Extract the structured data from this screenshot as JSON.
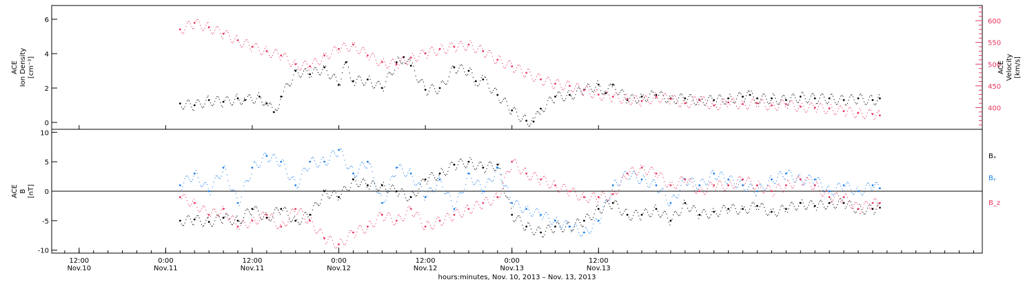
{
  "chart_data": [
    {
      "type": "scatter",
      "panel": "top",
      "ylabel_lines": [
        "ACE",
        "Ion Density",
        "[cm⁻³]"
      ],
      "y2label_lines": [
        "ACE",
        "Velocity",
        "[km/s]"
      ],
      "ylim": [
        -0.4,
        6.8
      ],
      "yticks": [
        0,
        2,
        4,
        6
      ],
      "y2lim": [
        350,
        635
      ],
      "y2ticks": [
        400,
        450,
        500,
        550,
        600
      ],
      "colors": {
        "density": "#000000",
        "velocity": "#e8335d"
      },
      "series": [
        {
          "name": "",
          "axis": "left",
          "color": "#000000",
          "x_hours": [
            14,
            16,
            18,
            20,
            22,
            23,
            25,
            26,
            27,
            28,
            30,
            32,
            34,
            36,
            37,
            38,
            40,
            42,
            44,
            45,
            46,
            48,
            50,
            52,
            54,
            55,
            56,
            58,
            60,
            62,
            63,
            64,
            66,
            68,
            70,
            72,
            73,
            74,
            76,
            78,
            80,
            82,
            84,
            86,
            88,
            90,
            92,
            93,
            94,
            96,
            98,
            100,
            102,
            104,
            106,
            108,
            110,
            111
          ],
          "y": [
            1.1,
            1.0,
            1.3,
            1.2,
            1.4,
            1.3,
            1.5,
            1.1,
            0.6,
            1.5,
            3.0,
            2.8,
            3.2,
            2.2,
            3.5,
            2.4,
            2.5,
            2.0,
            3.5,
            3.8,
            3.3,
            1.9,
            2.0,
            3.2,
            3.0,
            2.4,
            2.5,
            1.6,
            0.7,
            0.1,
            0.05,
            0.8,
            1.5,
            1.6,
            1.9,
            2.2,
            1.7,
            2.2,
            1.3,
            1.5,
            1.6,
            1.4,
            1.4,
            1.3,
            1.3,
            1.4,
            1.5,
            1.6,
            1.4,
            1.4,
            1.3,
            1.5,
            1.4,
            1.4,
            1.3,
            1.4,
            1.3,
            1.4
          ]
        },
        {
          "name": "",
          "axis": "right",
          "color": "#e8335d",
          "x_hours": [
            14,
            16,
            18,
            20,
            22,
            24,
            26,
            28,
            30,
            32,
            34,
            36,
            38,
            40,
            42,
            44,
            46,
            48,
            50,
            52,
            54,
            56,
            58,
            60,
            62,
            64,
            66,
            68,
            70,
            72,
            74,
            76,
            78,
            80,
            82,
            84,
            86,
            88,
            90,
            92,
            94,
            96,
            98,
            100,
            102,
            104,
            106,
            108,
            110,
            111
          ],
          "y": [
            580,
            595,
            585,
            570,
            555,
            540,
            530,
            520,
            500,
            495,
            520,
            535,
            545,
            520,
            505,
            500,
            515,
            525,
            535,
            540,
            545,
            530,
            510,
            495,
            480,
            465,
            455,
            450,
            440,
            430,
            425,
            420,
            415,
            425,
            420,
            410,
            418,
            405,
            412,
            408,
            410,
            405,
            408,
            402,
            400,
            398,
            392,
            388,
            385,
            382
          ]
        }
      ]
    },
    {
      "type": "scatter",
      "panel": "bottom",
      "ylabel_lines": [
        "ACE",
        "B",
        "[nT]"
      ],
      "ylim": [
        -10.5,
        10.5
      ],
      "yticks": [
        -10,
        -5,
        0,
        5,
        10
      ],
      "legend": [
        {
          "label": "Bₓ",
          "color": "#000000"
        },
        {
          "label": "Bᵧ",
          "color": "#1a7ee8"
        },
        {
          "label": "B_z",
          "color": "#e8335d"
        }
      ],
      "legend_placement": "right",
      "zero_line": true,
      "series": [
        {
          "name": "Bₓ",
          "color": "#000000",
          "x_hours": [
            14,
            16,
            18,
            20,
            22,
            24,
            26,
            28,
            30,
            32,
            34,
            36,
            38,
            40,
            42,
            44,
            46,
            48,
            50,
            52,
            54,
            56,
            58,
            60,
            62,
            64,
            66,
            68,
            70,
            72,
            74,
            76,
            78,
            80,
            82,
            84,
            86,
            88,
            90,
            92,
            94,
            96,
            98,
            100,
            102,
            104,
            106,
            108,
            110,
            111
          ],
          "y": [
            -5,
            -4.8,
            -5.2,
            -4.5,
            -5,
            -3,
            -4.5,
            -3,
            -5,
            -4,
            0,
            -1,
            2,
            1,
            1,
            0,
            -1,
            2,
            3,
            4.5,
            5,
            4,
            4.5,
            -4,
            -6,
            -7,
            -6,
            -6,
            -5,
            -3,
            -2,
            -4,
            -4,
            -3,
            -5,
            -2,
            -4,
            -3.5,
            -3,
            -3,
            -2.5,
            -3.5,
            -3,
            -2,
            -2.5,
            -2,
            -2,
            -3,
            -3,
            -2.8
          ]
        },
        {
          "name": "Bᵧ",
          "color": "#1a7ee8",
          "x_hours": [
            14,
            16,
            18,
            20,
            22,
            24,
            26,
            28,
            30,
            32,
            34,
            36,
            38,
            40,
            42,
            44,
            46,
            48,
            50,
            52,
            54,
            56,
            58,
            60,
            62,
            64,
            66,
            68,
            70,
            72,
            74,
            76,
            78,
            80,
            82,
            84,
            86,
            88,
            90,
            92,
            94,
            96,
            98,
            100,
            102,
            104,
            106,
            108,
            110,
            111
          ],
          "y": [
            1,
            3,
            0,
            4,
            -2,
            4,
            6,
            5,
            1,
            5,
            5,
            7,
            3,
            5,
            -2,
            4,
            3,
            -1,
            2,
            -3,
            3,
            0,
            4,
            -2,
            -3,
            -4,
            -5,
            -6,
            -7,
            -5,
            1,
            3,
            2,
            1,
            -2,
            2,
            1,
            3,
            2,
            1,
            0,
            2,
            3,
            2,
            2,
            0,
            1,
            0,
            1,
            0.5
          ]
        },
        {
          "name": "B_z",
          "color": "#e8335d",
          "x_hours": [
            14,
            16,
            18,
            20,
            22,
            24,
            26,
            28,
            30,
            32,
            34,
            36,
            38,
            40,
            42,
            44,
            46,
            48,
            50,
            52,
            54,
            56,
            58,
            60,
            62,
            64,
            66,
            68,
            70,
            72,
            74,
            76,
            78,
            80,
            82,
            84,
            86,
            88,
            90,
            92,
            94,
            96,
            98,
            100,
            102,
            104,
            106,
            108,
            110,
            111
          ],
          "y": [
            -1,
            -2,
            -4,
            -3,
            -6,
            -5,
            -4,
            -6,
            -3,
            -5,
            -8,
            -9,
            -7,
            -6,
            -4,
            -5,
            -3,
            -6,
            -5,
            -4,
            -3,
            -2,
            -1,
            5,
            3,
            2,
            1,
            0,
            -1,
            -1,
            -0.5,
            3,
            4,
            3,
            1,
            2,
            0,
            1,
            1,
            2,
            1,
            0,
            1,
            2,
            1,
            -1,
            -1,
            -3,
            -2,
            -2
          ]
        }
      ]
    }
  ],
  "xaxis": {
    "xlim_hours": [
      -3.8,
      125.2
    ],
    "ticks": [
      {
        "h": 0,
        "time": "12:00",
        "date": "Nov.10"
      },
      {
        "h": 12,
        "time": "0:00",
        "date": "Nov.11"
      },
      {
        "h": 24,
        "time": "12:00",
        "date": "Nov.11"
      },
      {
        "h": 36,
        "time": "0:00",
        "date": "Nov.12"
      },
      {
        "h": 48,
        "time": "12:00",
        "date": "Nov.12"
      },
      {
        "h": 60,
        "time": "0:00",
        "date": "Nov.13"
      },
      {
        "h": 72,
        "time": "12:00",
        "date": "Nov.13"
      }
    ],
    "xlabel": "hours:minutes, Nov. 10, 2013 – Nov. 13, 2013"
  }
}
